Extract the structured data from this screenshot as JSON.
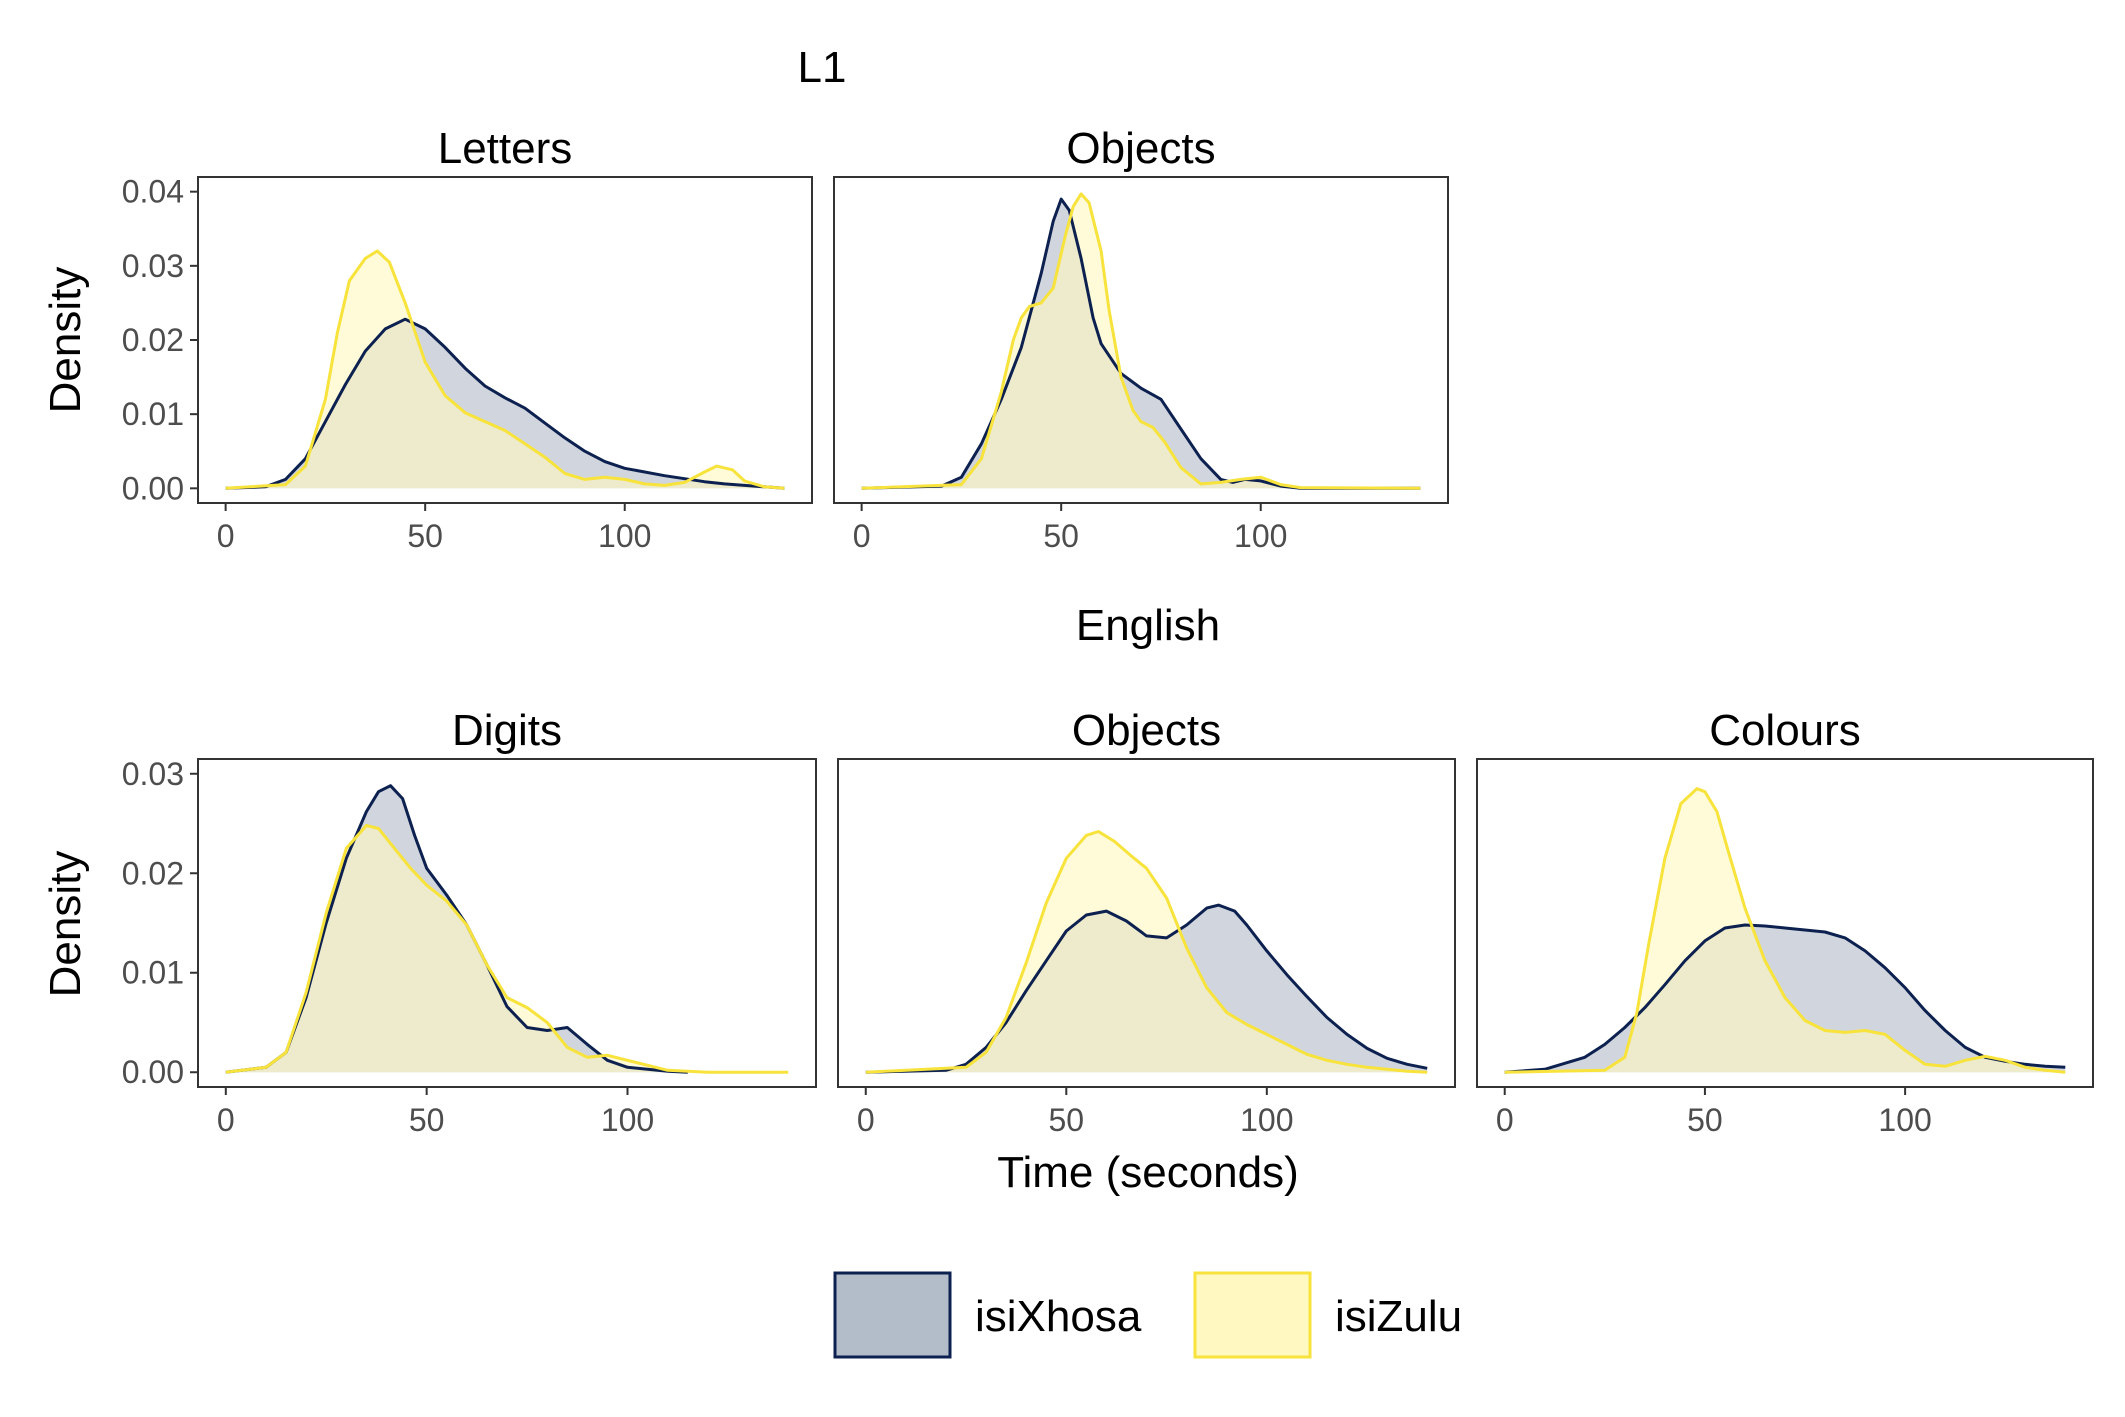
{
  "colors": {
    "isiXhosa": {
      "line": "#0d2150",
      "fill": "#b3bcc9"
    },
    "isiZulu": {
      "line": "#f7e33b",
      "fill": "#fff8c0"
    },
    "overlap_fill": "#c9c9a3"
  },
  "axes": {
    "x_title": "Time (seconds)",
    "y_title": "Density"
  },
  "legend": {
    "position": "bottom",
    "items": [
      "isiXhosa",
      "isiZulu"
    ]
  },
  "chart_data": [
    {
      "type": "area",
      "group": "L1",
      "title": "Letters",
      "xlim": [
        0,
        140
      ],
      "ylim": [
        0,
        0.04
      ],
      "xticks": [
        "0",
        "50",
        "100"
      ],
      "yticks": [
        "0.00",
        "0.01",
        "0.02",
        "0.03",
        "0.04"
      ],
      "series": [
        {
          "name": "isiXhosa",
          "x": [
            0,
            10,
            15,
            20,
            25,
            30,
            35,
            40,
            45,
            50,
            55,
            60,
            65,
            70,
            75,
            80,
            85,
            90,
            95,
            100,
            110,
            115,
            120,
            125,
            130,
            135,
            140
          ],
          "y": [
            0,
            0.0002,
            0.0012,
            0.004,
            0.009,
            0.014,
            0.0185,
            0.0215,
            0.0228,
            0.0215,
            0.019,
            0.0162,
            0.0138,
            0.0122,
            0.0108,
            0.0088,
            0.0068,
            0.005,
            0.0036,
            0.0027,
            0.0017,
            0.0013,
            0.0009,
            0.0006,
            0.0004,
            0.0002,
            0
          ]
        },
        {
          "name": "isiZulu",
          "x": [
            0,
            15,
            20,
            25,
            28,
            31,
            35,
            38,
            41,
            45,
            50,
            55,
            60,
            65,
            70,
            75,
            80,
            85,
            90,
            95,
            100,
            105,
            110,
            115,
            120,
            123,
            127,
            130,
            135,
            140
          ],
          "y": [
            0,
            0.0005,
            0.003,
            0.012,
            0.021,
            0.028,
            0.031,
            0.032,
            0.0305,
            0.025,
            0.017,
            0.0125,
            0.0102,
            0.009,
            0.0078,
            0.006,
            0.0042,
            0.002,
            0.0012,
            0.0015,
            0.0012,
            0.0006,
            0.0004,
            0.0008,
            0.0022,
            0.003,
            0.0025,
            0.001,
            0.0002,
            0
          ]
        }
      ]
    },
    {
      "type": "area",
      "group": "L1",
      "title": "Objects",
      "xlim": [
        0,
        140
      ],
      "ylim": [
        0,
        0.04
      ],
      "xticks": [
        "0",
        "50",
        "100"
      ],
      "yticks": [
        "0.00",
        "0.01",
        "0.02",
        "0.03",
        "0.04"
      ],
      "series": [
        {
          "name": "isiXhosa",
          "x": [
            0,
            20,
            25,
            30,
            35,
            40,
            45,
            48,
            50,
            52,
            55,
            58,
            60,
            65,
            70,
            75,
            80,
            85,
            90,
            93,
            96,
            100,
            105,
            110,
            140
          ],
          "y": [
            0,
            0.0003,
            0.0015,
            0.006,
            0.012,
            0.019,
            0.029,
            0.036,
            0.039,
            0.0375,
            0.031,
            0.023,
            0.0195,
            0.0155,
            0.0135,
            0.012,
            0.008,
            0.004,
            0.0012,
            0.0008,
            0.0012,
            0.001,
            0.0003,
            0,
            0
          ]
        },
        {
          "name": "isiZulu",
          "x": [
            0,
            25,
            30,
            35,
            38,
            40,
            42,
            45,
            48,
            51,
            53,
            55,
            57,
            60,
            62,
            65,
            68,
            70,
            73,
            76,
            80,
            85,
            90,
            95,
            100,
            105,
            110,
            140
          ],
          "y": [
            0,
            0.0005,
            0.004,
            0.013,
            0.02,
            0.023,
            0.0245,
            0.025,
            0.027,
            0.034,
            0.038,
            0.0397,
            0.0385,
            0.032,
            0.024,
            0.015,
            0.0105,
            0.009,
            0.0082,
            0.0062,
            0.0028,
            0.0006,
            0.0008,
            0.0012,
            0.0015,
            0.0005,
            0.0001,
            0
          ]
        }
      ]
    },
    {
      "type": "area",
      "group": "English",
      "title": "Digits",
      "xlim": [
        0,
        140
      ],
      "ylim": [
        0,
        0.03
      ],
      "xticks": [
        "0",
        "50",
        "100"
      ],
      "yticks": [
        "0.00",
        "0.01",
        "0.02",
        "0.03"
      ],
      "series": [
        {
          "name": "isiXhosa",
          "x": [
            0,
            10,
            15,
            20,
            25,
            30,
            35,
            38,
            41,
            44,
            47,
            50,
            55,
            60,
            65,
            70,
            75,
            80,
            85,
            90,
            95,
            100,
            110,
            115
          ],
          "y": [
            0,
            0.0005,
            0.002,
            0.0075,
            0.015,
            0.0215,
            0.0262,
            0.0282,
            0.0288,
            0.0275,
            0.0238,
            0.0205,
            0.0178,
            0.0148,
            0.0108,
            0.0066,
            0.0045,
            0.0042,
            0.0045,
            0.0028,
            0.0012,
            0.0005,
            0.0001,
            0
          ]
        },
        {
          "name": "isiZulu",
          "x": [
            0,
            10,
            15,
            20,
            25,
            30,
            35,
            38,
            42,
            46,
            50,
            55,
            60,
            65,
            70,
            75,
            80,
            85,
            90,
            95,
            100,
            110,
            120,
            140
          ],
          "y": [
            0,
            0.0005,
            0.002,
            0.008,
            0.016,
            0.0225,
            0.0248,
            0.0245,
            0.0225,
            0.0205,
            0.0188,
            0.0172,
            0.0148,
            0.0108,
            0.0075,
            0.0065,
            0.005,
            0.0025,
            0.0015,
            0.0017,
            0.0012,
            0.0002,
            0,
            0
          ]
        }
      ]
    },
    {
      "type": "area",
      "group": "English",
      "title": "Objects",
      "xlim": [
        0,
        140
      ],
      "ylim": [
        0,
        0.03
      ],
      "xticks": [
        "0",
        "50",
        "100"
      ],
      "yticks": [
        "0.00",
        "0.01",
        "0.02",
        "0.03"
      ],
      "series": [
        {
          "name": "isiXhosa",
          "x": [
            0,
            20,
            25,
            30,
            35,
            40,
            45,
            50,
            55,
            60,
            65,
            70,
            75,
            80,
            85,
            88,
            92,
            95,
            100,
            105,
            110,
            115,
            120,
            125,
            130,
            135,
            140
          ],
          "y": [
            0,
            0.0002,
            0.0008,
            0.0025,
            0.005,
            0.0082,
            0.0112,
            0.0142,
            0.0158,
            0.0162,
            0.0152,
            0.0137,
            0.0135,
            0.0148,
            0.0165,
            0.0168,
            0.0162,
            0.0148,
            0.0122,
            0.0098,
            0.0076,
            0.0055,
            0.0038,
            0.0024,
            0.0014,
            0.0008,
            0.0004
          ]
        },
        {
          "name": "isiZulu",
          "x": [
            0,
            25,
            30,
            35,
            40,
            45,
            50,
            55,
            58,
            62,
            66,
            70,
            75,
            80,
            85,
            90,
            95,
            100,
            105,
            110,
            115,
            120,
            125,
            130,
            135,
            140
          ],
          "y": [
            0,
            0.0005,
            0.002,
            0.0055,
            0.011,
            0.017,
            0.0215,
            0.0238,
            0.0242,
            0.0232,
            0.0218,
            0.0205,
            0.0175,
            0.0125,
            0.0085,
            0.006,
            0.0048,
            0.0038,
            0.0028,
            0.0018,
            0.0012,
            0.0008,
            0.0005,
            0.0003,
            0.0001,
            0
          ]
        }
      ]
    },
    {
      "type": "area",
      "group": "English",
      "title": "Colours",
      "xlim": [
        0,
        140
      ],
      "ylim": [
        0,
        0.03
      ],
      "xticks": [
        "0",
        "50",
        "100"
      ],
      "yticks": [
        "0.00",
        "0.01",
        "0.02",
        "0.03"
      ],
      "series": [
        {
          "name": "isiXhosa",
          "x": [
            0,
            10,
            20,
            25,
            30,
            35,
            40,
            45,
            50,
            55,
            60,
            65,
            70,
            75,
            80,
            85,
            90,
            95,
            100,
            105,
            110,
            115,
            120,
            125,
            130,
            135,
            140
          ],
          "y": [
            0,
            0.0003,
            0.0015,
            0.0028,
            0.0045,
            0.0065,
            0.0088,
            0.0112,
            0.0132,
            0.0145,
            0.0148,
            0.0147,
            0.0145,
            0.0143,
            0.0141,
            0.0135,
            0.0122,
            0.0105,
            0.0085,
            0.0062,
            0.0042,
            0.0025,
            0.0015,
            0.0011,
            0.0008,
            0.0006,
            0.0005
          ]
        },
        {
          "name": "isiZulu",
          "x": [
            0,
            25,
            30,
            33,
            36,
            40,
            44,
            48,
            50,
            53,
            56,
            60,
            65,
            70,
            75,
            80,
            85,
            90,
            95,
            100,
            105,
            110,
            115,
            120,
            125,
            130,
            135,
            140
          ],
          "y": [
            0,
            0.0002,
            0.0015,
            0.006,
            0.013,
            0.0215,
            0.027,
            0.0285,
            0.0282,
            0.0262,
            0.022,
            0.0165,
            0.0112,
            0.0075,
            0.0052,
            0.0042,
            0.004,
            0.0042,
            0.0038,
            0.0022,
            0.0008,
            0.0006,
            0.0012,
            0.0016,
            0.0012,
            0.0005,
            0.0002,
            0
          ]
        }
      ]
    }
  ]
}
